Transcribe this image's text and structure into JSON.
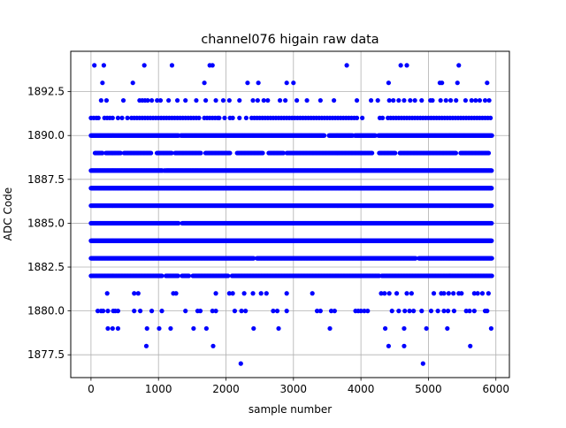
{
  "chart_data": {
    "type": "scatter",
    "title": "channel076 higain raw data",
    "xlabel": "sample number",
    "ylabel": "ADC Code",
    "xlim": [
      -300,
      6200
    ],
    "ylim": [
      1876.2,
      1894.8
    ],
    "xticks": [
      0,
      1000,
      2000,
      3000,
      4000,
      5000,
      6000
    ],
    "xtick_labels": [
      "0",
      "1000",
      "2000",
      "3000",
      "4000",
      "5000",
      "6000"
    ],
    "yticks": [
      1877.5,
      1880.0,
      1882.5,
      1885.0,
      1887.5,
      1890.0,
      1892.5
    ],
    "ytick_labels": [
      "1877.5",
      "1880.0",
      "1882.5",
      "1885.0",
      "1887.5",
      "1890.0",
      "1892.5"
    ],
    "grid": true,
    "marker_color": "#0000ff",
    "x_range_of_samples": [
      0,
      5940
    ],
    "levels": [
      {
        "y": 1894,
        "x": [
          50,
          190,
          790,
          1200,
          1760,
          1800,
          3790,
          4590,
          4680,
          5450
        ]
      },
      {
        "y": 1893,
        "x": [
          170,
          620,
          1680,
          2320,
          2480,
          2900,
          3000,
          4410,
          5170,
          5200,
          5430,
          5870
        ]
      },
      {
        "y": 1892,
        "x": [
          150,
          230,
          480,
          720,
          760,
          800,
          840,
          900,
          980,
          1030,
          1150,
          1280,
          1400,
          1560,
          1700,
          1850,
          1960,
          2050,
          2200,
          2400,
          2470,
          2560,
          2620,
          2800,
          2880,
          3050,
          3200,
          3400,
          3600,
          3940,
          4150,
          4250,
          4420,
          4480,
          4560,
          4640,
          4730,
          4800,
          4900,
          5030,
          5060,
          5180,
          5260,
          5330,
          5410,
          5550,
          5640,
          5700,
          5760,
          5840,
          5900
        ]
      },
      {
        "y": 1891,
        "x": [
          0,
          40,
          80,
          110,
          200,
          240,
          280,
          320,
          400,
          460,
          540,
          600,
          640,
          680,
          720,
          760,
          800,
          840,
          880,
          920,
          960,
          1000,
          1040,
          1080,
          1120,
          1160,
          1200,
          1240,
          1280,
          1320,
          1360,
          1400,
          1440,
          1480,
          1520,
          1560,
          1600,
          1680,
          1720,
          1760,
          1800,
          1840,
          1880,
          1900,
          1980,
          2060,
          2100,
          2200,
          2300,
          2380,
          2420,
          2460,
          2500,
          2540,
          2580,
          2620,
          2660,
          2700,
          2740,
          2780,
          2820,
          2860,
          2900,
          2940,
          2980,
          3020,
          3060,
          3100,
          3140,
          3180,
          3220,
          3260,
          3300,
          3340,
          3380,
          3420,
          3460,
          3500,
          3540,
          3580,
          3620,
          3660,
          3700,
          3740,
          3780,
          3820,
          3860,
          3900,
          3940,
          4020,
          4280,
          4320,
          4400,
          4440,
          4480,
          4520,
          4560,
          4600,
          4640,
          4680,
          4720,
          4760,
          4800,
          4840,
          4880,
          4920,
          4960,
          5000,
          5040,
          5080,
          5120,
          5160,
          5200,
          5240,
          5280,
          5320,
          5360,
          5400,
          5440,
          5480,
          5520,
          5560,
          5600,
          5640,
          5680,
          5720,
          5760,
          5800,
          5840,
          5880,
          5920
        ]
      },
      {
        "y": 1890,
        "dense": true,
        "x_start": 0,
        "x_end": 5940,
        "step": 12,
        "gaps": [
          [
            1300,
            1320
          ],
          [
            3460,
            3520
          ],
          [
            3880,
            3900
          ],
          [
            4220,
            4250
          ]
        ]
      },
      {
        "y": 1889,
        "dense": true,
        "x_start": 60,
        "x_end": 5900,
        "step": 18,
        "gaps": [
          [
            180,
            220
          ],
          [
            440,
            480
          ],
          [
            900,
            960
          ],
          [
            1200,
            1240
          ],
          [
            1640,
            1680
          ],
          [
            2060,
            2160
          ],
          [
            2560,
            2620
          ],
          [
            2860,
            2900
          ],
          [
            4180,
            4260
          ],
          [
            4520,
            4560
          ],
          [
            5420,
            5460
          ]
        ]
      },
      {
        "y": 1888,
        "dense": true,
        "x_start": 0,
        "x_end": 5940,
        "step": 8,
        "gaps": [
          [
            1060,
            1080
          ],
          [
            1100,
            1110
          ]
        ]
      },
      {
        "y": 1887,
        "dense": true,
        "x_start": 0,
        "x_end": 5940,
        "step": 8,
        "gaps": []
      },
      {
        "y": 1886,
        "dense": true,
        "x_start": 0,
        "x_end": 5940,
        "step": 8,
        "gaps": []
      },
      {
        "y": 1885,
        "dense": true,
        "x_start": 0,
        "x_end": 5940,
        "step": 8,
        "gaps": [
          [
            1300,
            1350
          ]
        ]
      },
      {
        "y": 1884,
        "dense": true,
        "x_start": 0,
        "x_end": 5940,
        "step": 8,
        "gaps": []
      },
      {
        "y": 1883,
        "dense": true,
        "x_start": 0,
        "x_end": 5940,
        "step": 10,
        "gaps": [
          [
            2420,
            2450
          ],
          [
            4820,
            4850
          ]
        ]
      },
      {
        "y": 1882,
        "dense": true,
        "x_start": 0,
        "x_end": 5940,
        "step": 10,
        "gaps": [
          [
            1060,
            1100
          ],
          [
            1300,
            1340
          ],
          [
            1460,
            1500
          ],
          [
            2040,
            2080
          ],
          [
            4280,
            4300
          ]
        ]
      },
      {
        "y": 1881,
        "x": [
          240,
          640,
          700,
          1220,
          1260,
          1850,
          2050,
          2100,
          2270,
          2400,
          2520,
          2600,
          2900,
          3280,
          4300,
          4350,
          4420,
          4530,
          4680,
          4750,
          5080,
          5190,
          5230,
          5300,
          5370,
          5450,
          5490,
          5680,
          5730,
          5800,
          5890
        ]
      },
      {
        "y": 1880,
        "x": [
          100,
          150,
          180,
          250,
          330,
          360,
          400,
          640,
          730,
          900,
          1050,
          1400,
          1580,
          1620,
          1800,
          1850,
          2130,
          2230,
          2290,
          2700,
          2760,
          2900,
          3350,
          3400,
          3560,
          3610,
          3920,
          3960,
          4000,
          4050,
          4100,
          4460,
          4560,
          4650,
          4720,
          4780,
          4900,
          5040,
          5140,
          5230,
          5290,
          5380,
          5560,
          5610,
          5680,
          5840,
          5870
        ]
      },
      {
        "y": 1879,
        "x": [
          250,
          320,
          400,
          830,
          1010,
          1180,
          1520,
          1710,
          2410,
          2780,
          3540,
          4360,
          4640,
          4970,
          5280,
          5930
        ]
      },
      {
        "y": 1878,
        "x": [
          820,
          1810,
          4410,
          4640,
          5620
        ]
      },
      {
        "y": 1877,
        "x": [
          2220,
          4920
        ]
      }
    ]
  }
}
